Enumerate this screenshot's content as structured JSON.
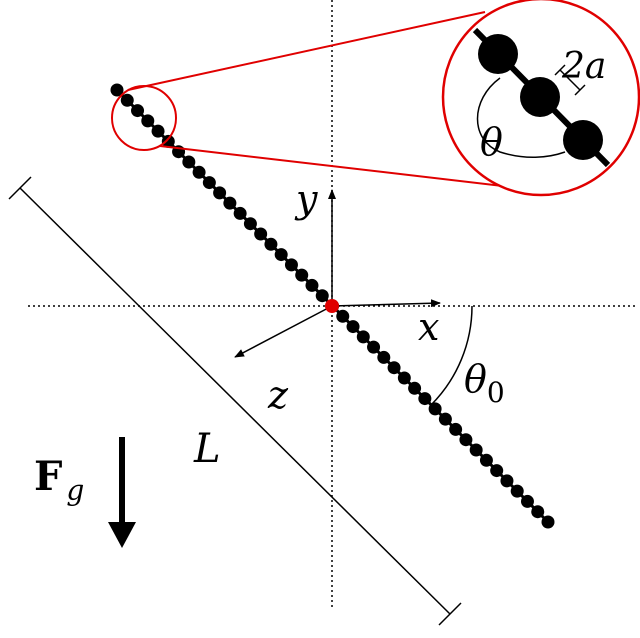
{
  "labels": {
    "y": "y",
    "x": "x",
    "z": "z",
    "length": "L",
    "theta0": "θ",
    "theta0_sub": "0",
    "force": "F",
    "force_sub": "g",
    "spacing": "2a",
    "theta": "θ"
  }
}
